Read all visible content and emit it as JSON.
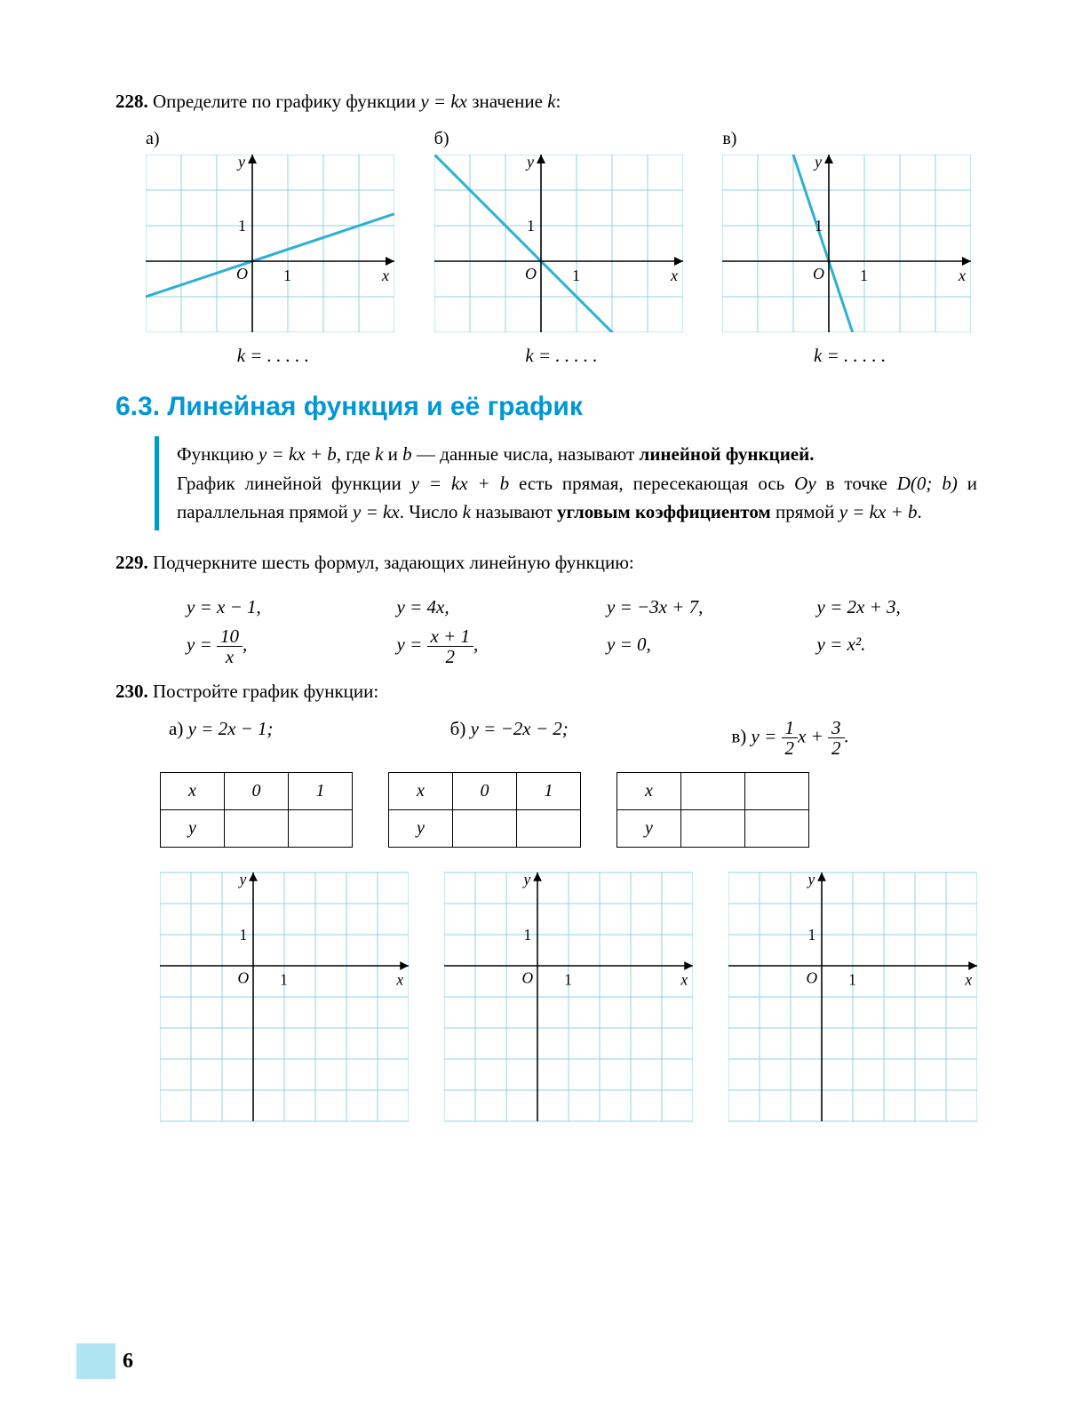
{
  "colors": {
    "grid": "#8cd3e6",
    "axis": "#000000",
    "line": "#2db0d6",
    "heading": "#0097d6",
    "page_box": "#b0e4f3"
  },
  "problem228": {
    "number": "228.",
    "text": "Определите по графику функции ",
    "eq": "y = kx",
    "text2": " значение ",
    "var": "k",
    "colon": ":"
  },
  "charts228": {
    "cell": 40,
    "cols": 7,
    "rows": 5,
    "origin_col": 3,
    "origin_row": 3,
    "a": {
      "label": "а)",
      "slope": 0.333,
      "k_blank": "k  =  . . . . ."
    },
    "b": {
      "label": "б)",
      "slope": -1,
      "k_blank": "k  =  . . . . ."
    },
    "c": {
      "label": "в)",
      "slope": -3,
      "k_blank": "k  =  . . . . ."
    },
    "axis_labels": {
      "y": "y",
      "x": "x",
      "O": "O",
      "one": "1"
    }
  },
  "section": {
    "title": "6.3. Линейная функция и её график"
  },
  "defbox": {
    "p1_a": "Функцию ",
    "p1_eq": "y = kx + b",
    "p1_b": ", где ",
    "p1_k": "k",
    "p1_and": " и ",
    "p1_bv": "b",
    "p1_c": " — данные числа, называют ",
    "p1_bold": "линейной функцией.",
    "p2_a": "График линейной функции ",
    "p2_eq": "y = kx + b",
    "p2_b": " есть прямая, пересекающая ось ",
    "p2_oy": "Oy",
    "p2_c": " в точке ",
    "p2_D": "D(0;  b)",
    "p2_d": " и параллельная прямой ",
    "p2_eq2": "y = kx",
    "p2_e": ". Число ",
    "p2_k": "k",
    "p2_f": " называют ",
    "p2_bold": "угловым коэффициентом",
    "p2_g": " прямой ",
    "p2_eq3": "y = kx + b",
    "p2_h": "."
  },
  "problem229": {
    "number": "229.",
    "text": "Подчеркните шесть формул, задающих линейную функцию:",
    "row1": [
      "y = x − 1,",
      "y = 4x,",
      "y = −3x + 7,",
      "y = 2x + 3,"
    ],
    "row2_a": {
      "pre": "y = ",
      "num": "10",
      "den": "x",
      "post": ","
    },
    "row2_b": {
      "pre": "y = ",
      "num": "x + 1",
      "den": "2",
      "post": ","
    },
    "row2_c": "y = 0,",
    "row2_d": "y = x².       "
  },
  "problem230": {
    "number": "230.",
    "text": "Постройте график функции:",
    "a": {
      "label": "а) ",
      "eq": "y = 2x − 1;"
    },
    "b": {
      "label": "б) ",
      "eq": "y = −2x − 2;"
    },
    "c": {
      "label": "в) ",
      "pre": "y = ",
      "f1n": "1",
      "f1d": "2",
      "mid": "x + ",
      "f2n": "3",
      "f2d": "2",
      "post": "."
    },
    "table_headers": {
      "x": "x",
      "y": "y",
      "c0": "0",
      "c1": "1"
    }
  },
  "charts230": {
    "cell": 36,
    "cols": 8,
    "rows": 8,
    "origin_col": 3,
    "origin_row": 3,
    "axis_labels": {
      "y": "y",
      "x": "x",
      "O": "O",
      "one": "1"
    }
  },
  "page_number": "6"
}
